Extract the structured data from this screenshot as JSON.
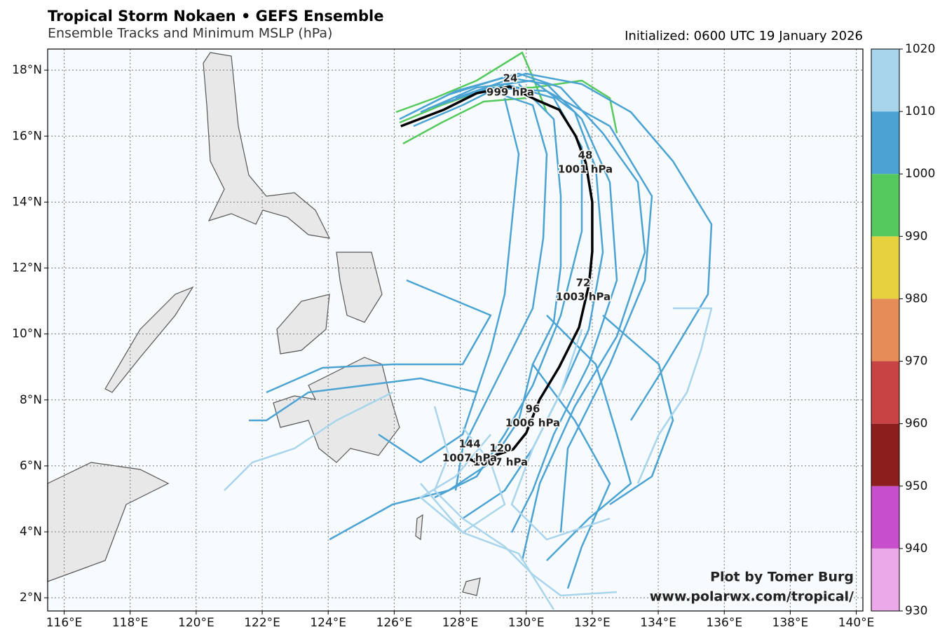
{
  "chart_data": {
    "type": "track_map",
    "title": "Tropical Storm Nokaen • GEFS Ensemble",
    "subtitle": "Ensemble Tracks and Minimum MSLP (hPa)",
    "initialized": "Initialized: 0600 UTC 19 January 2026",
    "credit": [
      "Plot by Tomer Burg",
      "www.polarwx.com/tropical/"
    ],
    "xlim": [
      115.5,
      140.2
    ],
    "ylim": [
      1.6,
      18.64
    ],
    "xticks": [
      {
        "value": 116,
        "label": "116°E"
      },
      {
        "value": 118,
        "label": "118°E"
      },
      {
        "value": 120,
        "label": "120°E"
      },
      {
        "value": 122,
        "label": "122°E"
      },
      {
        "value": 124,
        "label": "124°E"
      },
      {
        "value": 126,
        "label": "126°E"
      },
      {
        "value": 128,
        "label": "128°E"
      },
      {
        "value": 130,
        "label": "130°E"
      },
      {
        "value": 132,
        "label": "132°E"
      },
      {
        "value": 134,
        "label": "134°E"
      },
      {
        "value": 136,
        "label": "136°E"
      },
      {
        "value": 138,
        "label": "138°E"
      },
      {
        "value": 140,
        "label": "140°E"
      }
    ],
    "yticks": [
      {
        "value": 2,
        "label": "2°N"
      },
      {
        "value": 4,
        "label": "4°N"
      },
      {
        "value": 6,
        "label": "6°N"
      },
      {
        "value": 8,
        "label": "8°N"
      },
      {
        "value": 10,
        "label": "10°N"
      },
      {
        "value": 12,
        "label": "12°N"
      },
      {
        "value": 14,
        "label": "14°N"
      },
      {
        "value": 16,
        "label": "16°N"
      },
      {
        "value": 18,
        "label": "18°N"
      }
    ],
    "grid": true,
    "colorbar": {
      "levels": [
        930,
        940,
        950,
        960,
        970,
        980,
        990,
        1000,
        1010,
        1020
      ],
      "colors": [
        "#eba9ea",
        "#c84fcb",
        "#8c1e1e",
        "#c84343",
        "#e58c59",
        "#e6d23f",
        "#55c95e",
        "#4aa3d3",
        "#a8d4ec"
      ]
    },
    "mean_track": {
      "color": "#000000",
      "lon": [
        126.2,
        127.5,
        128.5,
        129.5,
        130.3,
        131.0,
        131.5,
        131.8,
        132.0,
        132.0,
        131.9,
        131.6,
        131.0,
        130.4,
        130.0,
        129.6,
        129.0,
        128.5,
        128.3
      ],
      "lat": [
        16.3,
        16.8,
        17.3,
        17.5,
        17.1,
        16.8,
        16.0,
        15.2,
        14.0,
        12.5,
        11.5,
        10.2,
        9.0,
        8.0,
        7.0,
        6.5,
        6.3,
        6.1,
        6.2
      ]
    },
    "labels": [
      {
        "hour": "24",
        "pressure": "999 hPa"
      },
      {
        "hour": "48",
        "pressure": "1001 hPa"
      },
      {
        "hour": "72",
        "pressure": "1003 hPa"
      },
      {
        "hour": "96",
        "pressure": "1006 hPa"
      },
      {
        "hour": "120",
        "pressure": "1007 hPa"
      },
      {
        "hour": "144",
        "pressure": "1007 hPa"
      }
    ]
  }
}
